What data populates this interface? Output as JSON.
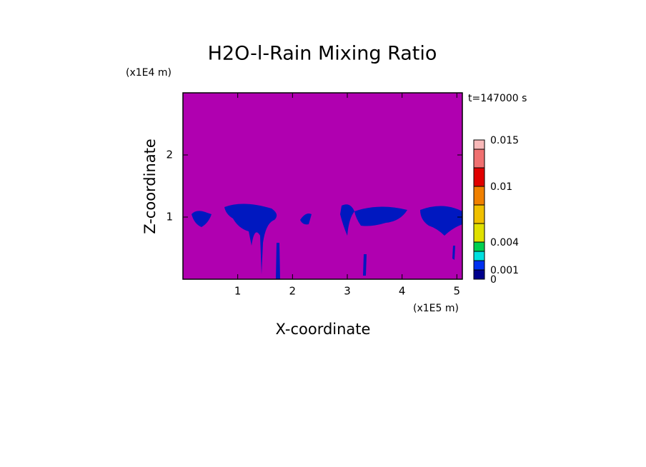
{
  "chart_data": {
    "type": "contour",
    "title": "H2O-l-Rain Mixing Ratio",
    "time_label": "t=147000 s",
    "x_label": "X-coordinate",
    "y_label": "Z-coordinate",
    "x_unit": "(x1E5 m)",
    "y_unit": "(x1E4 m)",
    "xlim": [
      0,
      5.1
    ],
    "xticks": [
      1,
      2,
      3,
      4,
      5
    ],
    "ylim": [
      0,
      3
    ],
    "yticks": [
      1,
      2
    ],
    "background_color": "#b000b0",
    "colorbar": {
      "levels": [
        0,
        0.001,
        0.002,
        0.003,
        0.004,
        0.006,
        0.008,
        0.01,
        0.012,
        0.014,
        0.015
      ],
      "colors": [
        "#00008c",
        "#0030f0",
        "#00e0e0",
        "#00d050",
        "#e0e000",
        "#f0c000",
        "#f08000",
        "#e00000",
        "#f07070",
        "#f8b8b8"
      ],
      "ticks": [
        0,
        0.001,
        0.004,
        0.01,
        0.015
      ]
    }
  }
}
